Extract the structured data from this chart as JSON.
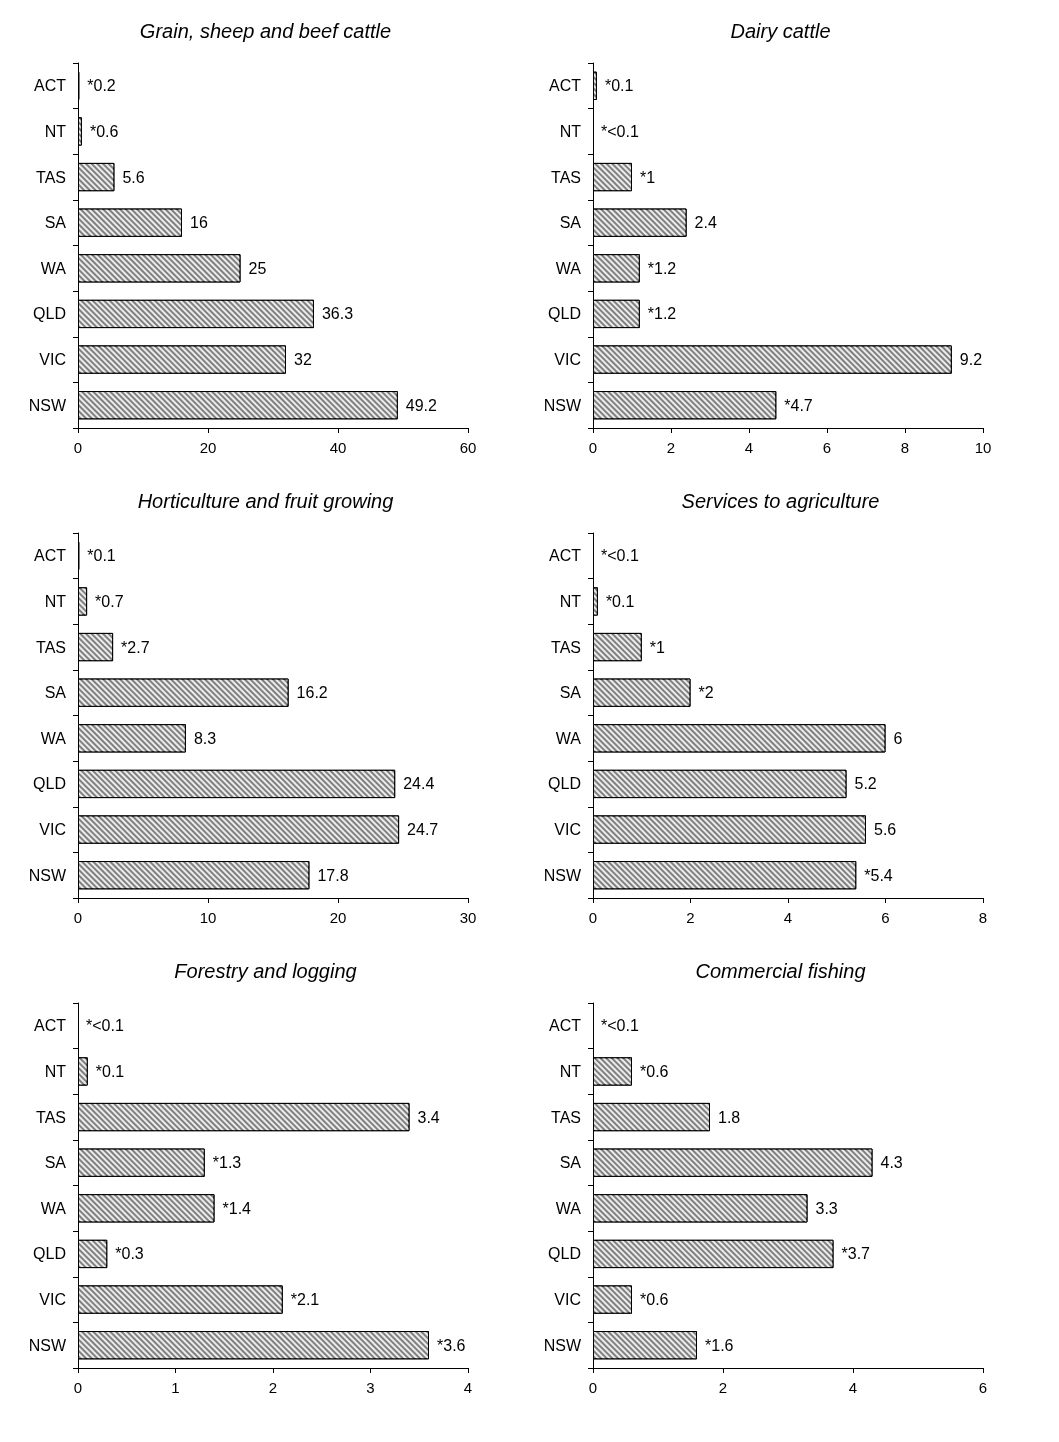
{
  "chart_data": [
    {
      "type": "bar",
      "orientation": "horizontal",
      "title": "Grain, sheep and beef cattle",
      "categories": [
        "ACT",
        "NT",
        "TAS",
        "SA",
        "WA",
        "QLD",
        "VIC",
        "NSW"
      ],
      "values": [
        0.2,
        0.6,
        5.6,
        16,
        25,
        36.3,
        32,
        49.2
      ],
      "value_labels": [
        "*0.2",
        "*0.6",
        "5.6",
        "16",
        "25",
        "36.3",
        "32",
        "49.2"
      ],
      "color": "#808080",
      "xlim": [
        0,
        60
      ],
      "xticks": [
        0,
        20,
        40,
        60
      ]
    },
    {
      "type": "bar",
      "orientation": "horizontal",
      "title": "Dairy cattle",
      "categories": [
        "ACT",
        "NT",
        "TAS",
        "SA",
        "WA",
        "QLD",
        "VIC",
        "NSW"
      ],
      "values": [
        0.1,
        0,
        1,
        2.4,
        1.2,
        1.2,
        9.2,
        4.7
      ],
      "value_labels": [
        "*0.1",
        "*<0.1",
        "*1",
        "2.4",
        "*1.2",
        "*1.2",
        "9.2",
        "*4.7"
      ],
      "color": "#808080",
      "xlim": [
        0,
        10
      ],
      "xticks": [
        0,
        2,
        4,
        6,
        8,
        10
      ]
    },
    {
      "type": "bar",
      "orientation": "horizontal",
      "title": "Horticulture and fruit growing",
      "categories": [
        "ACT",
        "NT",
        "TAS",
        "SA",
        "WA",
        "QLD",
        "VIC",
        "NSW"
      ],
      "values": [
        0.1,
        0.7,
        2.7,
        16.2,
        8.3,
        24.4,
        24.7,
        17.8
      ],
      "value_labels": [
        "*0.1",
        "*0.7",
        "*2.7",
        "16.2",
        "8.3",
        "24.4",
        "24.7",
        "17.8"
      ],
      "color": "#808080",
      "xlim": [
        0,
        30
      ],
      "xticks": [
        0,
        10,
        20,
        30
      ]
    },
    {
      "type": "bar",
      "orientation": "horizontal",
      "title": "Services to agriculture",
      "categories": [
        "ACT",
        "NT",
        "TAS",
        "SA",
        "WA",
        "QLD",
        "VIC",
        "NSW"
      ],
      "values": [
        0,
        0.1,
        1,
        2,
        6,
        5.2,
        5.6,
        5.4
      ],
      "value_labels": [
        "*<0.1",
        "*0.1",
        "*1",
        "*2",
        "6",
        "5.2",
        "5.6",
        "*5.4"
      ],
      "color": "#808080",
      "xlim": [
        0,
        8
      ],
      "xticks": [
        0,
        2,
        4,
        6,
        8
      ]
    },
    {
      "type": "bar",
      "orientation": "horizontal",
      "title": "Forestry and logging",
      "categories": [
        "ACT",
        "NT",
        "TAS",
        "SA",
        "WA",
        "QLD",
        "VIC",
        "NSW"
      ],
      "values": [
        0,
        0.1,
        3.4,
        1.3,
        1.4,
        0.3,
        2.1,
        3.6
      ],
      "value_labels": [
        "*<0.1",
        "*0.1",
        "3.4",
        "*1.3",
        "*1.4",
        "*0.3",
        "*2.1",
        "*3.6"
      ],
      "color": "#808080",
      "xlim": [
        0,
        4
      ],
      "xticks": [
        0,
        1,
        2,
        3,
        4
      ]
    },
    {
      "type": "bar",
      "orientation": "horizontal",
      "title": "Commercial fishing",
      "categories": [
        "ACT",
        "NT",
        "TAS",
        "SA",
        "WA",
        "QLD",
        "VIC",
        "NSW"
      ],
      "values": [
        0,
        0.6,
        1.8,
        4.3,
        3.3,
        3.7,
        0.6,
        1.6
      ],
      "value_labels": [
        "*<0.1",
        "*0.6",
        "1.8",
        "4.3",
        "3.3",
        "*3.7",
        "*0.6",
        "*1.6"
      ],
      "color": "#808080",
      "xlim": [
        0,
        6
      ],
      "xticks": [
        0,
        2,
        4,
        6
      ]
    }
  ]
}
